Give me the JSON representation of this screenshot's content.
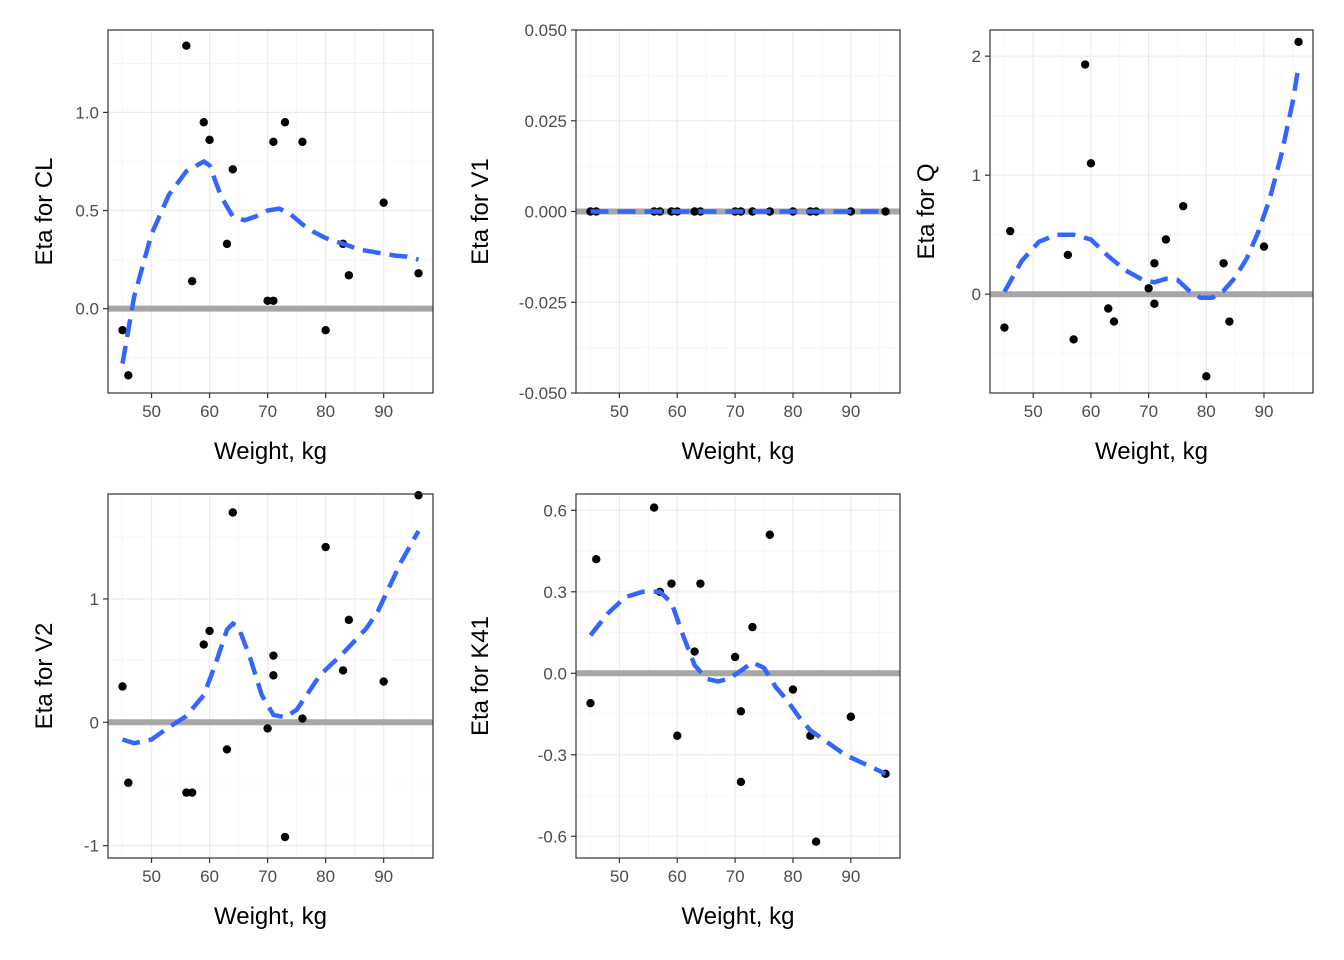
{
  "colors": {
    "smooth": "#3366FF",
    "reference": "#A6A6A6",
    "points": "#000000",
    "grid_major": "#EBEBEB",
    "grid_minor": "#F4F4F4",
    "frame": "#333333",
    "tick_text": "#4D4D4D"
  },
  "chart_data": [
    {
      "type": "scatter",
      "title": "",
      "xlabel": "Weight, kg",
      "ylabel": "Eta for CL",
      "xlim": [
        42.5,
        98.5
      ],
      "ylim": [
        -0.43,
        1.42
      ],
      "x_ticks": [
        50,
        60,
        70,
        80,
        90
      ],
      "x_tick_labels": [
        "50",
        "60",
        "70",
        "80",
        "90"
      ],
      "y_ticks": [
        0,
        0.5,
        1
      ],
      "y_tick_labels": [
        "0.0",
        "0.5",
        "1.0"
      ],
      "reference_y": 0,
      "points": [
        [
          45,
          -0.11
        ],
        [
          46,
          -0.34
        ],
        [
          56,
          1.34
        ],
        [
          57,
          0.14
        ],
        [
          59,
          0.95
        ],
        [
          60,
          0.86
        ],
        [
          63,
          0.33
        ],
        [
          64,
          0.71
        ],
        [
          70,
          0.04
        ],
        [
          71,
          0.04
        ],
        [
          71,
          0.85
        ],
        [
          73,
          0.95
        ],
        [
          76,
          0.85
        ],
        [
          80,
          -0.11
        ],
        [
          83,
          0.33
        ],
        [
          84,
          0.17
        ],
        [
          90,
          0.54
        ],
        [
          96,
          0.18
        ]
      ],
      "smooth": [
        [
          45,
          -0.28
        ],
        [
          47,
          0.06
        ],
        [
          50,
          0.38
        ],
        [
          53,
          0.58
        ],
        [
          56,
          0.7
        ],
        [
          59,
          0.75
        ],
        [
          60,
          0.73
        ],
        [
          62,
          0.57
        ],
        [
          64,
          0.47
        ],
        [
          66,
          0.45
        ],
        [
          68,
          0.47
        ],
        [
          70,
          0.5
        ],
        [
          72,
          0.51
        ],
        [
          74,
          0.48
        ],
        [
          76,
          0.43
        ],
        [
          78,
          0.39
        ],
        [
          80,
          0.36
        ],
        [
          82,
          0.34
        ],
        [
          84,
          0.32
        ],
        [
          86,
          0.3
        ],
        [
          88,
          0.29
        ],
        [
          90,
          0.28
        ],
        [
          92,
          0.27
        ],
        [
          94,
          0.265
        ],
        [
          96,
          0.25
        ]
      ]
    },
    {
      "type": "scatter",
      "title": "",
      "xlabel": "Weight, kg",
      "ylabel": "Eta for V1",
      "xlim": [
        42.5,
        98.5
      ],
      "ylim": [
        -0.05,
        0.05
      ],
      "x_ticks": [
        50,
        60,
        70,
        80,
        90
      ],
      "x_tick_labels": [
        "50",
        "60",
        "70",
        "80",
        "90"
      ],
      "y_ticks": [
        -0.05,
        -0.025,
        0,
        0.025,
        0.05
      ],
      "y_tick_labels": [
        "-0.050",
        "-0.025",
        "0.000",
        "0.025",
        "0.050"
      ],
      "reference_y": 0,
      "points": [
        [
          45,
          0
        ],
        [
          46,
          0
        ],
        [
          56,
          0
        ],
        [
          57,
          0
        ],
        [
          59,
          0
        ],
        [
          60,
          0
        ],
        [
          63,
          0
        ],
        [
          64,
          0
        ],
        [
          70,
          0
        ],
        [
          71,
          0
        ],
        [
          73,
          0
        ],
        [
          76,
          0
        ],
        [
          80,
          0
        ],
        [
          83,
          0
        ],
        [
          84,
          0
        ],
        [
          90,
          0
        ],
        [
          96,
          0
        ]
      ],
      "smooth": [
        [
          45,
          0
        ],
        [
          96,
          0
        ]
      ]
    },
    {
      "type": "scatter",
      "title": "",
      "xlabel": "Weight, kg",
      "ylabel": "Eta for Q",
      "xlim": [
        42.5,
        98.5
      ],
      "ylim": [
        -0.83,
        2.22
      ],
      "x_ticks": [
        50,
        60,
        70,
        80,
        90
      ],
      "x_tick_labels": [
        "50",
        "60",
        "70",
        "80",
        "90"
      ],
      "y_ticks": [
        0,
        1,
        2
      ],
      "y_tick_labels": [
        "0",
        "1",
        "2"
      ],
      "reference_y": 0,
      "points": [
        [
          45,
          -0.28
        ],
        [
          46,
          0.53
        ],
        [
          56,
          0.33
        ],
        [
          57,
          -0.38
        ],
        [
          59,
          1.93
        ],
        [
          60,
          1.1
        ],
        [
          63,
          -0.12
        ],
        [
          64,
          -0.23
        ],
        [
          70,
          0.05
        ],
        [
          71,
          0.26
        ],
        [
          71,
          -0.08
        ],
        [
          73,
          0.46
        ],
        [
          76,
          0.74
        ],
        [
          80,
          -0.69
        ],
        [
          83,
          0.26
        ],
        [
          84,
          -0.23
        ],
        [
          90,
          0.4
        ],
        [
          96,
          2.12
        ]
      ],
      "smooth": [
        [
          45,
          0.02
        ],
        [
          48,
          0.28
        ],
        [
          51,
          0.44
        ],
        [
          54,
          0.5
        ],
        [
          57,
          0.5
        ],
        [
          60,
          0.46
        ],
        [
          63,
          0.32
        ],
        [
          66,
          0.2
        ],
        [
          69,
          0.12
        ],
        [
          71,
          0.1
        ],
        [
          73,
          0.13
        ],
        [
          75,
          0.12
        ],
        [
          77,
          0.03
        ],
        [
          79,
          -0.03
        ],
        [
          81,
          -0.03
        ],
        [
          83,
          0.03
        ],
        [
          85,
          0.14
        ],
        [
          87,
          0.3
        ],
        [
          89,
          0.52
        ],
        [
          91,
          0.8
        ],
        [
          93,
          1.17
        ],
        [
          95,
          1.62
        ],
        [
          96,
          1.92
        ]
      ]
    },
    {
      "type": "scatter",
      "title": "",
      "xlabel": "Weight, kg",
      "ylabel": "Eta for V2",
      "xlim": [
        42.5,
        98.5
      ],
      "ylim": [
        -1.1,
        1.85
      ],
      "x_ticks": [
        50,
        60,
        70,
        80,
        90
      ],
      "x_tick_labels": [
        "50",
        "60",
        "70",
        "80",
        "90"
      ],
      "y_ticks": [
        -1,
        0,
        1
      ],
      "y_tick_labels": [
        "-1",
        "0",
        "1"
      ],
      "reference_y": 0,
      "points": [
        [
          45,
          0.29
        ],
        [
          46,
          -0.49
        ],
        [
          56,
          -0.57
        ],
        [
          57,
          -0.57
        ],
        [
          59,
          0.63
        ],
        [
          60,
          0.74
        ],
        [
          63,
          -0.22
        ],
        [
          64,
          1.7
        ],
        [
          70,
          -0.05
        ],
        [
          71,
          0.54
        ],
        [
          71,
          0.38
        ],
        [
          73,
          -0.93
        ],
        [
          76,
          0.03
        ],
        [
          80,
          1.42
        ],
        [
          83,
          0.42
        ],
        [
          84,
          0.83
        ],
        [
          90,
          0.33
        ],
        [
          96,
          1.84
        ]
      ],
      "smooth": [
        [
          45,
          -0.14
        ],
        [
          47,
          -0.17
        ],
        [
          50,
          -0.14
        ],
        [
          53,
          -0.04
        ],
        [
          56,
          0.05
        ],
        [
          59,
          0.22
        ],
        [
          61,
          0.47
        ],
        [
          63,
          0.75
        ],
        [
          64,
          0.8
        ],
        [
          65,
          0.77
        ],
        [
          67,
          0.52
        ],
        [
          69,
          0.22
        ],
        [
          71,
          0.06
        ],
        [
          73,
          0.04
        ],
        [
          75,
          0.1
        ],
        [
          77,
          0.24
        ],
        [
          79,
          0.38
        ],
        [
          81,
          0.47
        ],
        [
          83,
          0.56
        ],
        [
          85,
          0.66
        ],
        [
          87,
          0.76
        ],
        [
          89,
          0.9
        ],
        [
          91,
          1.1
        ],
        [
          93,
          1.3
        ],
        [
          96,
          1.55
        ]
      ]
    },
    {
      "type": "scatter",
      "title": "",
      "xlabel": "Weight, kg",
      "ylabel": "Eta for K41",
      "xlim": [
        42.5,
        98.5
      ],
      "ylim": [
        -0.68,
        0.66
      ],
      "x_ticks": [
        50,
        60,
        70,
        80,
        90
      ],
      "x_tick_labels": [
        "50",
        "60",
        "70",
        "80",
        "90"
      ],
      "y_ticks": [
        -0.6,
        -0.3,
        0,
        0.3,
        0.6
      ],
      "y_tick_labels": [
        "-0.6",
        "-0.3",
        "0.0",
        "0.3",
        "0.6"
      ],
      "reference_y": 0,
      "points": [
        [
          45,
          -0.11
        ],
        [
          46,
          0.42
        ],
        [
          56,
          0.61
        ],
        [
          57,
          0.3
        ],
        [
          59,
          0.33
        ],
        [
          60,
          -0.23
        ],
        [
          63,
          0.08
        ],
        [
          64,
          0.33
        ],
        [
          70,
          0.06
        ],
        [
          71,
          -0.14
        ],
        [
          71,
          -0.4
        ],
        [
          73,
          0.17
        ],
        [
          76,
          0.51
        ],
        [
          80,
          -0.06
        ],
        [
          83,
          -0.23
        ],
        [
          84,
          -0.62
        ],
        [
          90,
          -0.16
        ],
        [
          96,
          -0.37
        ]
      ],
      "smooth": [
        [
          45,
          0.14
        ],
        [
          48,
          0.22
        ],
        [
          51,
          0.28
        ],
        [
          54,
          0.3
        ],
        [
          57,
          0.3
        ],
        [
          59,
          0.26
        ],
        [
          61,
          0.14
        ],
        [
          63,
          0.03
        ],
        [
          65,
          -0.02
        ],
        [
          67,
          -0.03
        ],
        [
          69,
          -0.02
        ],
        [
          71,
          0.01
        ],
        [
          73,
          0.04
        ],
        [
          75,
          0.02
        ],
        [
          77,
          -0.05
        ],
        [
          79,
          -0.1
        ],
        [
          81,
          -0.16
        ],
        [
          83,
          -0.21
        ],
        [
          85,
          -0.24
        ],
        [
          87,
          -0.27
        ],
        [
          89,
          -0.3
        ],
        [
          91,
          -0.32
        ],
        [
          93,
          -0.34
        ],
        [
          95,
          -0.36
        ],
        [
          96,
          -0.37
        ]
      ]
    }
  ]
}
